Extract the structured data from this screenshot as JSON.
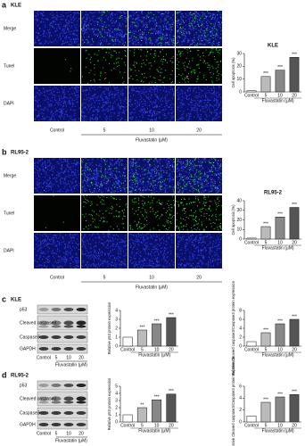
{
  "image_panels": [
    {
      "label": "a",
      "cell_line": "KLE",
      "rows": [
        "Merge",
        "Tunel",
        "DAPI"
      ],
      "columns": [
        "Control",
        "5",
        "10",
        "20"
      ],
      "x_label": "Fluvastatin (μM)"
    },
    {
      "label": "b",
      "cell_line": "RL95-2",
      "rows": [
        "Merge",
        "Tunel",
        "DAPI"
      ],
      "columns": [
        "Control",
        "5",
        "10",
        "20"
      ],
      "x_label": "Fluvastatin (μM)"
    }
  ],
  "blot_panels": [
    {
      "label": "c",
      "cell_line": "KLE",
      "bands": [
        "p53",
        "Cleaved caspase3",
        "Caspase3",
        "GAPDH"
      ],
      "columns": [
        "Control",
        "5",
        "10",
        "20"
      ],
      "x_label": "Fluvastatin (μM)"
    },
    {
      "label": "d",
      "cell_line": "RL95-2",
      "bands": [
        "p53",
        "Cleaved caspase3",
        "Caspase3",
        "GAPDH"
      ],
      "columns": [
        "Control",
        "5",
        "10",
        "20"
      ],
      "x_label": "Fluvastatin (μM)"
    }
  ],
  "chart_data": [
    {
      "type": "bar",
      "title": "KLE",
      "y_label": "Cell apoptosis (%)",
      "x_label": "Fluvastatin (μM)",
      "categories": [
        "Control",
        "5",
        "10",
        "20"
      ],
      "values": [
        1,
        12,
        17,
        27
      ],
      "significance": [
        null,
        "***",
        "***",
        "***"
      ],
      "colors": [
        "#ffffff",
        "#bbbbbb",
        "#888888",
        "#555555"
      ],
      "ylim": [
        0,
        30
      ],
      "yticks": [
        0,
        10,
        20,
        30
      ]
    },
    {
      "type": "bar",
      "title": "RL95-2",
      "y_label": "Cell apoptosis (%)",
      "x_label": "Fluvastatin (μM)",
      "categories": [
        "Control",
        "5",
        "10",
        "20"
      ],
      "values": [
        1,
        13,
        23,
        33
      ],
      "significance": [
        null,
        "***",
        "***",
        "***"
      ],
      "colors": [
        "#ffffff",
        "#bbbbbb",
        "#888888",
        "#555555"
      ],
      "ylim": [
        0,
        40
      ],
      "yticks": [
        0,
        10,
        20,
        30,
        40
      ]
    },
    {
      "type": "bar",
      "y_label": "Relative p53 protein expression",
      "x_label": "Fluvastatin (μM)",
      "categories": [
        "Control",
        "5",
        "10",
        "20"
      ],
      "values": [
        1,
        1.8,
        2.5,
        3.2
      ],
      "significance": [
        null,
        "***",
        "***",
        "***"
      ],
      "colors": [
        "#ffffff",
        "#bbbbbb",
        "#888888",
        "#555555"
      ],
      "ylim": [
        0,
        4
      ],
      "yticks": [
        0,
        1,
        2,
        3,
        4
      ]
    },
    {
      "type": "bar",
      "y_label": "Relative Cleaved caspase3/Caspase3 protein expression",
      "x_label": "Fluvastatin (μM)",
      "categories": [
        "Control",
        "5",
        "10",
        "20"
      ],
      "values": [
        1,
        3,
        5,
        6
      ],
      "significance": [
        null,
        "***",
        "***",
        "***"
      ],
      "colors": [
        "#ffffff",
        "#bbbbbb",
        "#888888",
        "#555555"
      ],
      "ylim": [
        0,
        8
      ],
      "yticks": [
        0,
        2,
        4,
        6,
        8
      ]
    },
    {
      "type": "bar",
      "y_label": "Relative p53 protein expression",
      "x_label": "Fluvastatin (μM)",
      "categories": [
        "Control",
        "5",
        "10",
        "20"
      ],
      "values": [
        1,
        2,
        3.1,
        3.9
      ],
      "significance": [
        null,
        "**",
        "***",
        "***"
      ],
      "colors": [
        "#ffffff",
        "#bbbbbb",
        "#888888",
        "#555555"
      ],
      "ylim": [
        0,
        5
      ],
      "yticks": [
        0,
        1,
        2,
        3,
        4,
        5
      ]
    },
    {
      "type": "bar",
      "y_label": "Relative Cleaved caspase3/Caspase3 protein expression",
      "x_label": "Fluvastatin (μM)",
      "categories": [
        "Control",
        "5",
        "10",
        "20"
      ],
      "values": [
        1,
        3.3,
        4.2,
        4.6
      ],
      "significance": [
        null,
        "***",
        "***",
        "***"
      ],
      "colors": [
        "#ffffff",
        "#bbbbbb",
        "#888888",
        "#555555"
      ],
      "ylim": [
        0,
        6
      ],
      "yticks": [
        0,
        2,
        4,
        6
      ]
    }
  ]
}
